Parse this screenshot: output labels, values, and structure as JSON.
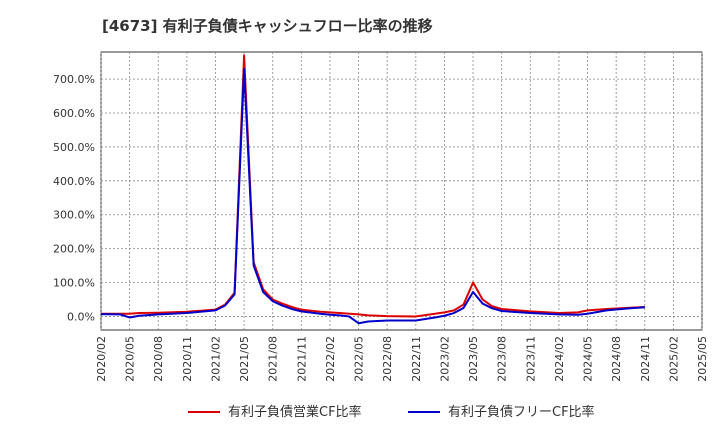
{
  "chart_data": {
    "type": "line",
    "title": "[4673]  有利子負債キャッシュフロー比率の推移",
    "xlabel": "",
    "ylabel": "",
    "ylim": [
      -40,
      780
    ],
    "y_ticks": [
      0,
      100,
      200,
      300,
      400,
      500,
      600,
      700
    ],
    "y_tick_labels": [
      "0.0%",
      "100.0%",
      "200.0%",
      "300.0%",
      "400.0%",
      "500.0%",
      "600.0%",
      "700.0%"
    ],
    "x_range": [
      "2020-02",
      "2025-05"
    ],
    "x_ticks": [
      "2020/02",
      "2020/05",
      "2020/08",
      "2020/11",
      "2021/02",
      "2021/05",
      "2021/08",
      "2021/11",
      "2022/02",
      "2022/05",
      "2022/08",
      "2022/11",
      "2023/02",
      "2023/05",
      "2023/08",
      "2023/11",
      "2024/02",
      "2024/05",
      "2024/08",
      "2024/11",
      "2025/02",
      "2025/05"
    ],
    "grid": true,
    "legend_position": "bottom",
    "series": [
      {
        "name": "有利子負債営業CF比率",
        "color": "#dd0000",
        "points": [
          [
            "2020-02",
            8
          ],
          [
            "2020-05",
            8
          ],
          [
            "2020-06",
            10
          ],
          [
            "2020-08",
            11
          ],
          [
            "2020-11",
            14
          ],
          [
            "2021-02",
            20
          ],
          [
            "2021-03",
            35
          ],
          [
            "2021-04",
            70
          ],
          [
            "2021-05",
            770
          ],
          [
            "2021-06",
            160
          ],
          [
            "2021-07",
            80
          ],
          [
            "2021-08",
            50
          ],
          [
            "2021-09",
            38
          ],
          [
            "2021-10",
            28
          ],
          [
            "2021-11",
            20
          ],
          [
            "2022-01",
            14
          ],
          [
            "2022-02",
            12
          ],
          [
            "2022-03",
            10
          ],
          [
            "2022-05",
            6
          ],
          [
            "2022-06",
            3
          ],
          [
            "2022-08",
            1
          ],
          [
            "2022-11",
            0
          ],
          [
            "2023-01",
            8
          ],
          [
            "2023-02",
            12
          ],
          [
            "2023-03",
            18
          ],
          [
            "2023-04",
            35
          ],
          [
            "2023-05",
            100
          ],
          [
            "2023-06",
            50
          ],
          [
            "2023-07",
            30
          ],
          [
            "2023-08",
            22
          ],
          [
            "2023-11",
            15
          ],
          [
            "2024-02",
            10
          ],
          [
            "2024-04",
            12
          ],
          [
            "2024-05",
            18
          ],
          [
            "2024-07",
            22
          ],
          [
            "2024-09",
            25
          ],
          [
            "2024-11",
            28
          ]
        ]
      },
      {
        "name": "有利子負債フリーCF比率",
        "color": "#0000cc",
        "points": [
          [
            "2020-02",
            7
          ],
          [
            "2020-04",
            6
          ],
          [
            "2020-05",
            -3
          ],
          [
            "2020-06",
            2
          ],
          [
            "2020-08",
            6
          ],
          [
            "2020-11",
            10
          ],
          [
            "2021-02",
            18
          ],
          [
            "2021-03",
            32
          ],
          [
            "2021-04",
            65
          ],
          [
            "2021-05",
            730
          ],
          [
            "2021-06",
            150
          ],
          [
            "2021-07",
            72
          ],
          [
            "2021-08",
            45
          ],
          [
            "2021-09",
            32
          ],
          [
            "2021-10",
            22
          ],
          [
            "2021-11",
            15
          ],
          [
            "2022-01",
            8
          ],
          [
            "2022-02",
            5
          ],
          [
            "2022-03",
            3
          ],
          [
            "2022-04",
            0
          ],
          [
            "2022-05",
            -20
          ],
          [
            "2022-06",
            -15
          ],
          [
            "2022-08",
            -12
          ],
          [
            "2022-11",
            -12
          ],
          [
            "2023-01",
            -3
          ],
          [
            "2023-02",
            2
          ],
          [
            "2023-03",
            10
          ],
          [
            "2023-04",
            25
          ],
          [
            "2023-05",
            72
          ],
          [
            "2023-06",
            38
          ],
          [
            "2023-07",
            24
          ],
          [
            "2023-08",
            16
          ],
          [
            "2023-11",
            10
          ],
          [
            "2024-02",
            6
          ],
          [
            "2024-04",
            5
          ],
          [
            "2024-05",
            8
          ],
          [
            "2024-07",
            18
          ],
          [
            "2024-09",
            23
          ],
          [
            "2024-11",
            27
          ]
        ]
      }
    ]
  }
}
